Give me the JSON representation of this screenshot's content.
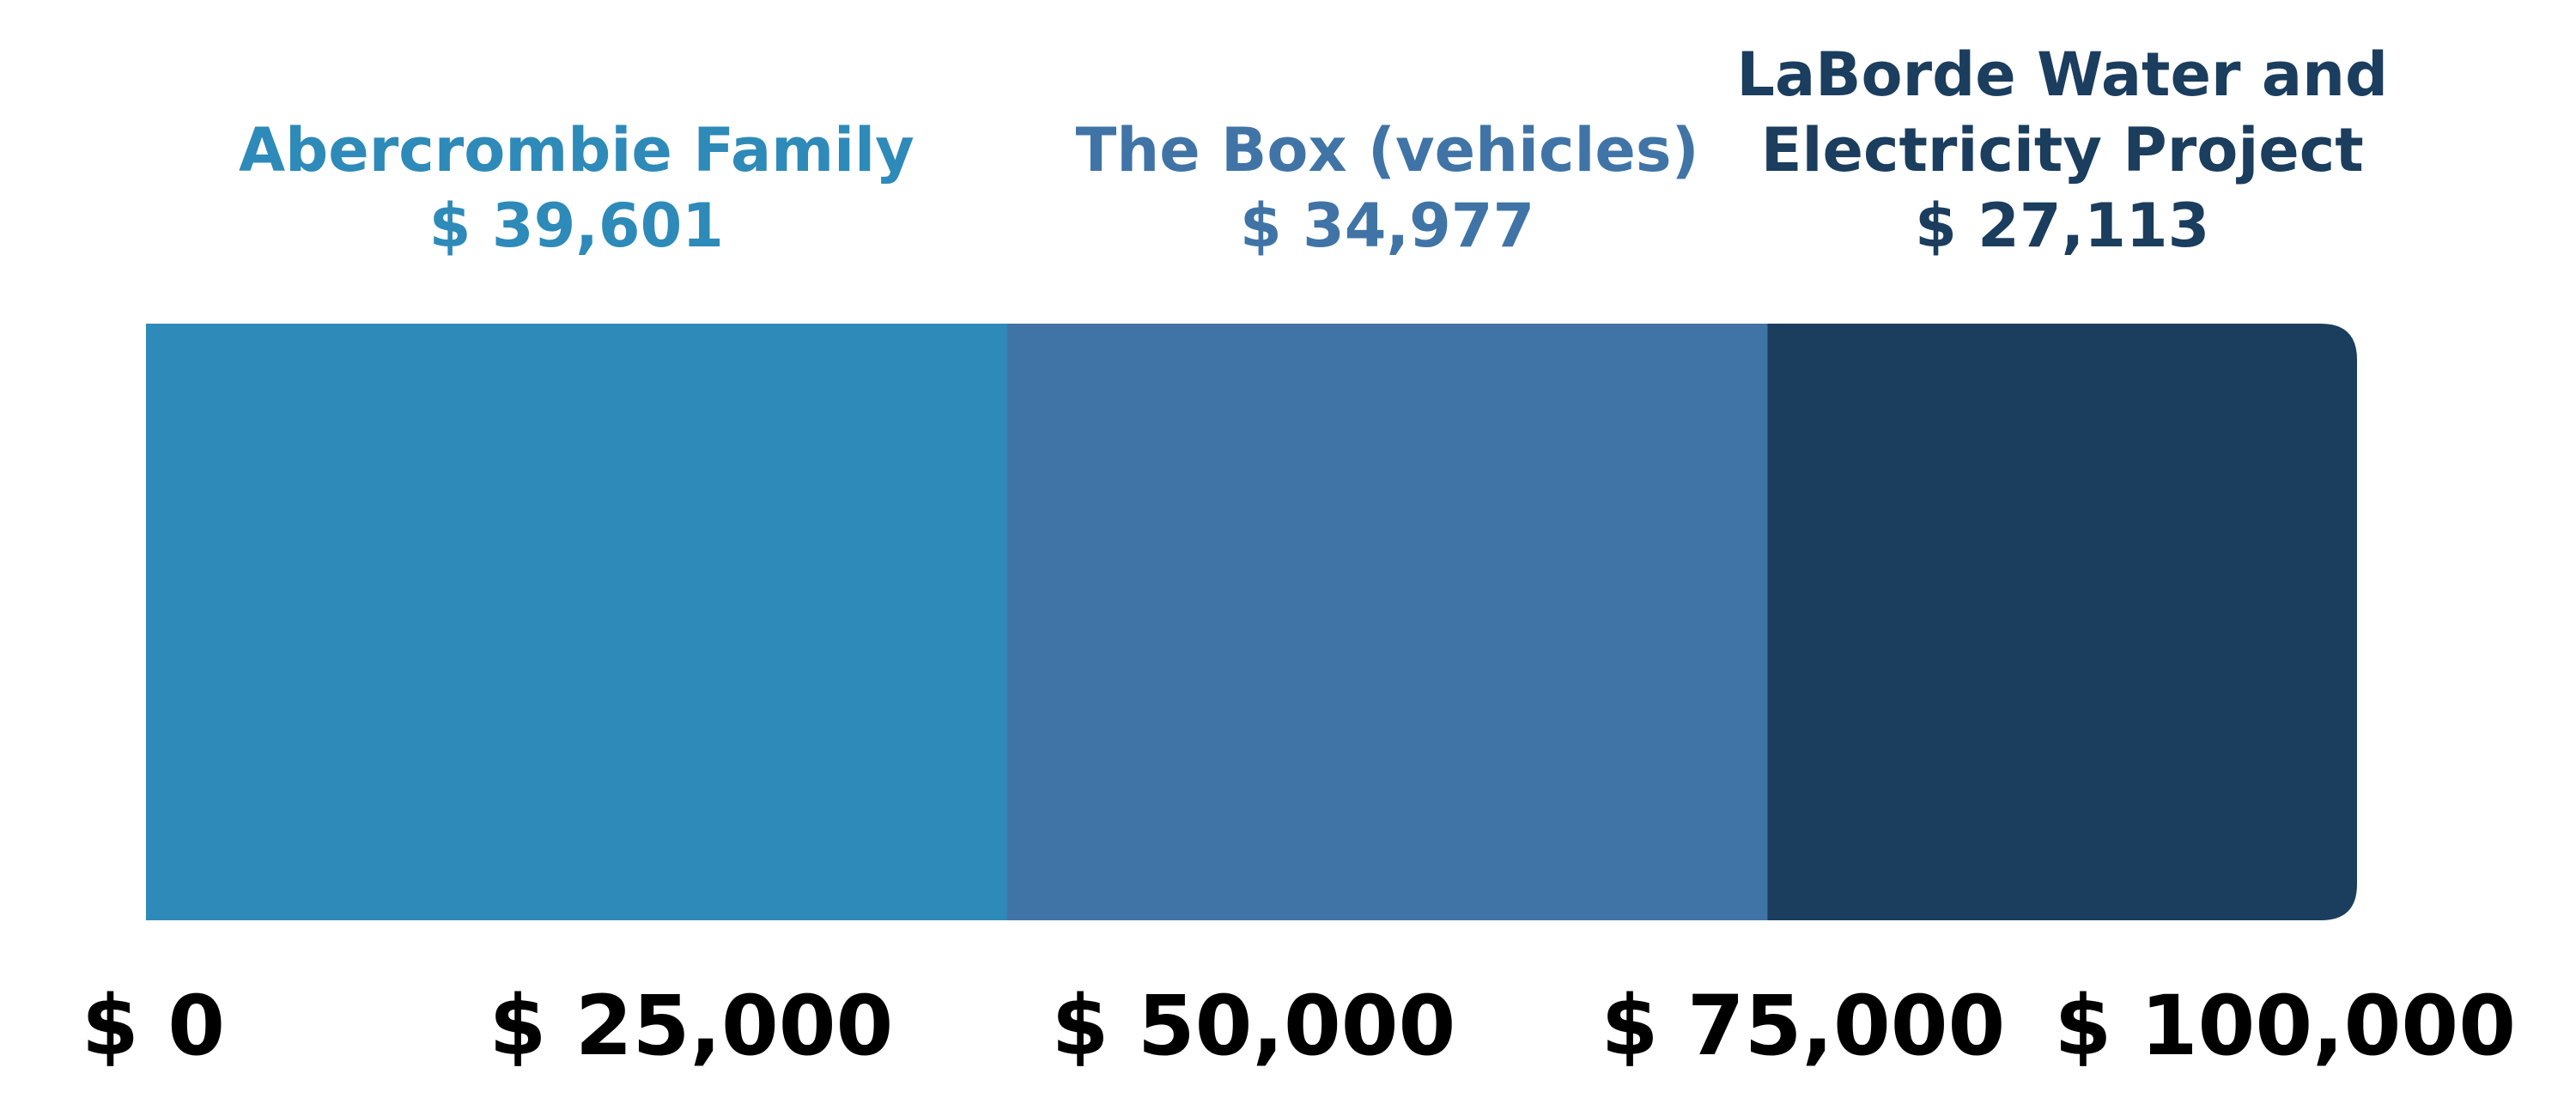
{
  "chart_data": {
    "type": "bar",
    "orientation": "horizontal-stacked",
    "categories": [
      "Abercrombie Family",
      "The Box (vehicles)",
      "LaBorde Water and Electricity Project"
    ],
    "series": [
      {
        "label_lines": [
          "Abercrombie Family"
        ],
        "value": 39601,
        "value_label": "$ 39,601",
        "color": "#2E8AB8"
      },
      {
        "label_lines": [
          "The Box (vehicles)"
        ],
        "value": 34977,
        "value_label": "$ 34,977",
        "color": "#4074A6"
      },
      {
        "label_lines": [
          "LaBorde Water and",
          "Electricity Project"
        ],
        "value": 27113,
        "value_label": "$ 27,113",
        "color": "#1B3D5E"
      }
    ],
    "xlim": [
      0,
      100000
    ],
    "ticks": [
      {
        "value": 0,
        "label": "$ 0"
      },
      {
        "value": 25000,
        "label": "$ 25,000"
      },
      {
        "value": 50000,
        "label": "$ 50,000"
      },
      {
        "value": 75000,
        "label": "$ 75,000"
      },
      {
        "value": 100000,
        "label": "$ 100,000"
      }
    ],
    "tick_color": "#000000",
    "grid": false,
    "legend": "none"
  }
}
